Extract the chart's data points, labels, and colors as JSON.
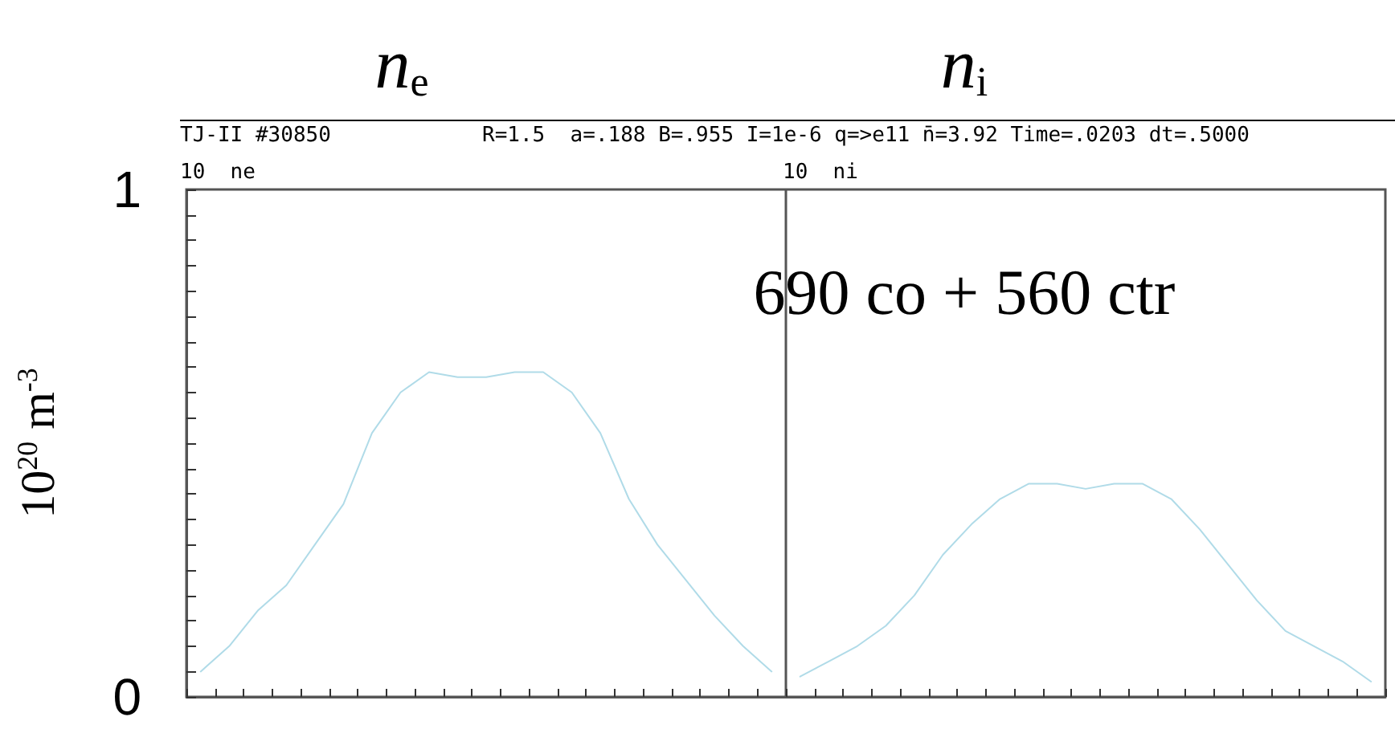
{
  "chart_data": {
    "type": "line",
    "ylabel": "10$^{20}$ m$^{-3}$",
    "annotations": [
      "n$_{e}$",
      "n$_{i}$",
      "TJ-II #30850",
      "R=1.5  a=.188 B=.955 I=1e-6 q=>e11 n̄=3.92 Time=.0203 dt=.5000",
      "10  ne",
      "10  ni",
      "690 co + 560 ctr"
    ],
    "categories": [
      null,
      null,
      null,
      null,
      null,
      null,
      null,
      null,
      null,
      null,
      null,
      null,
      null,
      null,
      null,
      null,
      null,
      null,
      null,
      null,
      null,
      null,
      null,
      null,
      null,
      null,
      null,
      null,
      null,
      null,
      null,
      null,
      null,
      null,
      null,
      null,
      null,
      null,
      null,
      null,
      null,
      null
    ],
    "series": [
      {
        "color": "#b0dbe8",
        "values": [
          0.05,
          0.1,
          0.17,
          0.22,
          0.3,
          0.38,
          0.52,
          0.6,
          0.64,
          0.63,
          0.63,
          0.64,
          0.64,
          0.6,
          0.52,
          0.39,
          0.3,
          0.23,
          0.16,
          0.1,
          0.05,
          null,
          null,
          null,
          null,
          null,
          null,
          null,
          null,
          null,
          null,
          null,
          null,
          null,
          null,
          null,
          null,
          null,
          null,
          null,
          null,
          null
        ]
      },
      {
        "color": "#b0dbe8",
        "values": [
          null,
          null,
          null,
          null,
          null,
          null,
          null,
          null,
          null,
          null,
          null,
          null,
          null,
          null,
          null,
          null,
          null,
          null,
          null,
          null,
          null,
          0.04,
          0.07,
          0.1,
          0.14,
          0.2,
          0.28,
          0.34,
          0.39,
          0.42,
          0.42,
          0.41,
          0.42,
          0.42,
          0.39,
          0.33,
          0.26,
          0.19,
          0.13,
          0.1,
          0.07,
          0.03
        ]
      }
    ],
    "ylim": [
      0,
      1
    ],
    "yticks": [
      0,
      {
        "value": 0.05,
        "label": null
      },
      {
        "value": 0.1,
        "label": null
      },
      {
        "value": 0.15,
        "label": null
      },
      {
        "value": 0.2,
        "label": null
      },
      {
        "value": 0.25,
        "label": null
      },
      {
        "value": 0.3,
        "label": null
      },
      {
        "value": 0.35,
        "label": null
      },
      {
        "value": 0.4,
        "label": null
      },
      {
        "value": 0.45,
        "label": null
      },
      {
        "value": 0.5,
        "label": null
      },
      {
        "value": 0.55,
        "label": null
      },
      {
        "value": 0.6,
        "label": null
      },
      {
        "value": 0.65,
        "label": null
      },
      {
        "value": 0.7,
        "label": null
      },
      {
        "value": 0.75,
        "label": null
      },
      {
        "value": 0.8,
        "label": null
      },
      {
        "value": 0.85,
        "label": null
      },
      {
        "value": 0.9,
        "label": null
      },
      {
        "value": 0.95,
        "label": null
      },
      1
    ],
    "tick_labels": "y",
    "marker": "none",
    "line_style": "solid"
  }
}
